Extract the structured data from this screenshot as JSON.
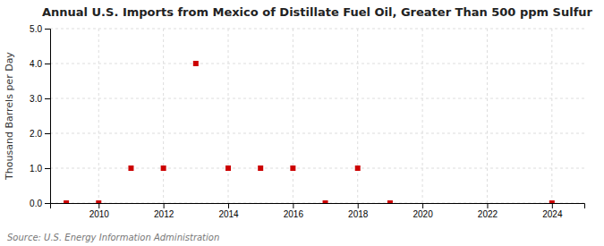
{
  "chart_data": {
    "type": "scatter",
    "title": "Annual U.S. Imports from Mexico of Distillate Fuel Oil, Greater Than 500 ppm Sulfur",
    "ylabel": "Thousand Barrels per Day",
    "annotations": [
      "Source: U.S. Energy Information Administration"
    ],
    "x": [
      2009,
      2010,
      2011,
      2012,
      2013,
      2014,
      2015,
      2016,
      2017,
      2018,
      2019,
      2024
    ],
    "values": [
      0.0,
      0.0,
      1.0,
      1.0,
      4.0,
      1.0,
      1.0,
      1.0,
      0.0,
      1.0,
      0.0,
      0.0
    ],
    "color": "#cc0000",
    "marker": "square",
    "xlim": [
      2008.5,
      2025.0
    ],
    "xticks": [
      2010,
      2012,
      2014,
      2016,
      2018,
      2020,
      2022,
      2024
    ],
    "ylim": [
      0.0,
      5.0
    ],
    "yticks": [
      {
        "value": 0.0,
        "label": "0.0"
      },
      {
        "value": 1.0,
        "label": "1.0"
      },
      {
        "value": 2.0,
        "label": "2.0"
      },
      {
        "value": 3.0,
        "label": "3.0"
      },
      {
        "value": 4.0,
        "label": "4.0"
      },
      {
        "value": 5.0,
        "label": "5.0"
      }
    ],
    "grid": true
  }
}
